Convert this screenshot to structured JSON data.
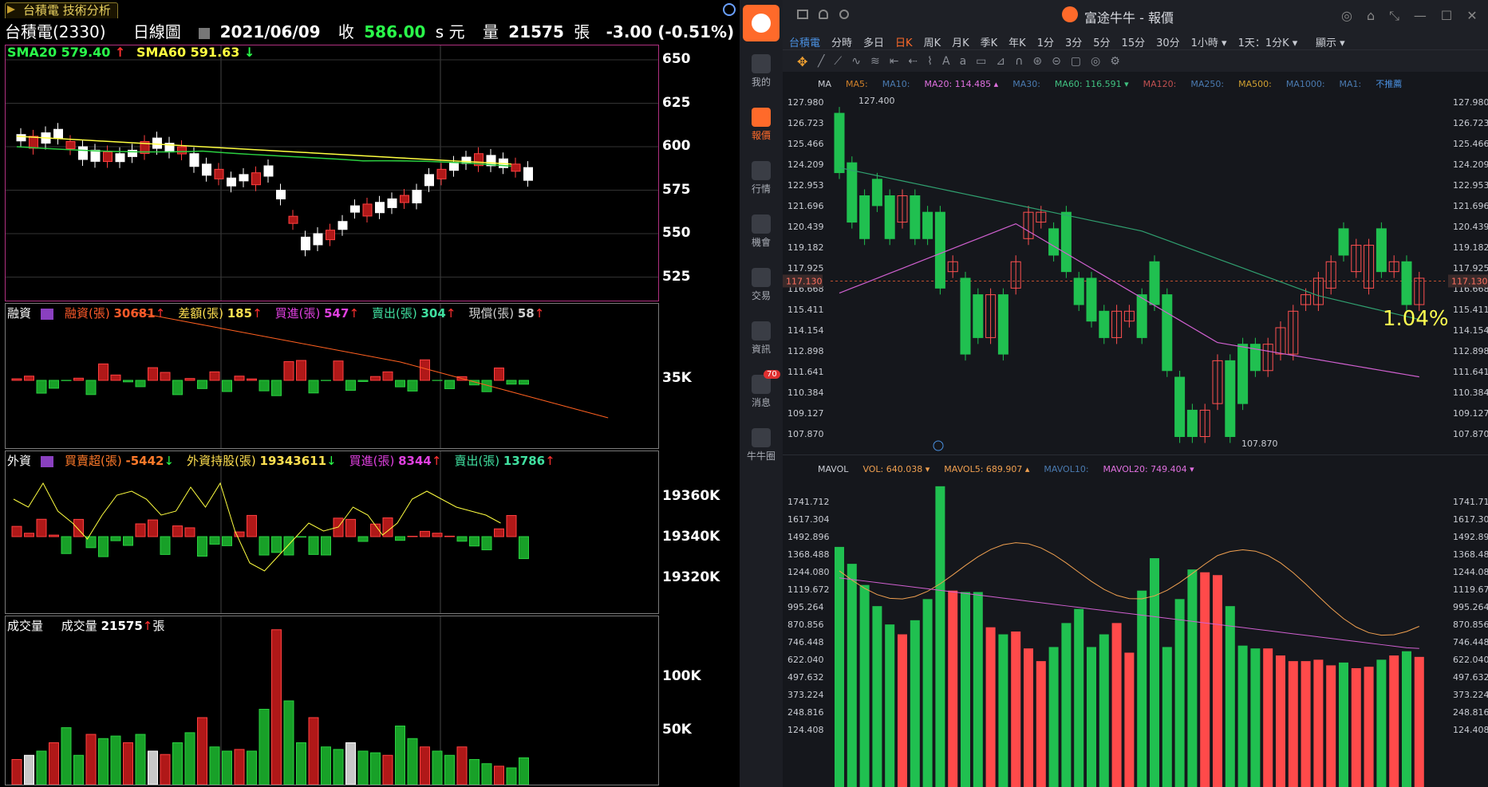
{
  "left": {
    "tab_title": "台積電 技術分析",
    "stock": "台積電(2330)",
    "period": "日線圖",
    "date": "2021/06/09",
    "close_label": "收",
    "close": "586.00",
    "unit_s": "s 元",
    "vol_label": "量",
    "vol": "21575",
    "zhang": "張",
    "change": "-3.00 (-0.51%)",
    "sma20": "SMA20 579.40",
    "sma60": "SMA60 591.63",
    "price_ticks": [
      "650",
      "625",
      "600",
      "575",
      "550",
      "525"
    ],
    "margin_panel": {
      "name": "融資",
      "items": [
        {
          "label": "融資(張)",
          "value": "30681",
          "dir": "up",
          "color": "#ff5a2a"
        },
        {
          "label": "差額(張)",
          "value": "185",
          "dir": "up",
          "color": "#ffe050"
        },
        {
          "label": "買進(張)",
          "value": "547",
          "dir": "up",
          "color": "#e040e0"
        },
        {
          "label": "賣出(張)",
          "value": "304",
          "dir": "up",
          "color": "#40e0a0"
        },
        {
          "label": "現償(張)",
          "value": "58",
          "dir": "up",
          "color": "#cfcfcf"
        }
      ],
      "tick": "35K"
    },
    "foreign_panel": {
      "name": "外資",
      "items": [
        {
          "label": "買賣超(張)",
          "value": "-5442",
          "dir": "down",
          "color": "#ff7a2a"
        },
        {
          "label": "外資持股(張)",
          "value": "19343611",
          "dir": "down",
          "color": "#ffe050"
        },
        {
          "label": "買進(張)",
          "value": "8344",
          "dir": "up",
          "color": "#e040e0"
        },
        {
          "label": "賣出(張)",
          "value": "13786",
          "dir": "up",
          "color": "#40e0a0"
        }
      ],
      "ticks": [
        "19360K",
        "19340K",
        "19320K"
      ]
    },
    "volume_panel": {
      "name": "成交量",
      "label": "成交量",
      "value": "21575",
      "unit": "張",
      "ticks": [
        "100K",
        "50K"
      ]
    }
  },
  "right": {
    "title": "富途牛牛 - 報價",
    "sidebar": [
      {
        "label": "我的",
        "icon": "person-icon"
      },
      {
        "label": "報價",
        "icon": "chart-bar-icon"
      },
      {
        "label": "行情",
        "icon": "market-icon"
      },
      {
        "label": "機會",
        "icon": "lamp-icon"
      },
      {
        "label": "交易",
        "icon": "trade-icon"
      },
      {
        "label": "資訊",
        "icon": "news-icon"
      },
      {
        "label": "消息",
        "icon": "message-icon",
        "badge": "70"
      },
      {
        "label": "牛牛圈",
        "icon": "community-icon"
      }
    ],
    "timeframes": [
      "台積電",
      "分時",
      "多日",
      "日K",
      "周K",
      "月K",
      "季K",
      "年K",
      "1分",
      "3分",
      "5分",
      "15分",
      "30分",
      "1小時 ▾",
      "1天：1分K ▾"
    ],
    "display_label": "顯示 ▾",
    "ma_bar": [
      {
        "t": "MA",
        "c": "#c9ccd3"
      },
      {
        "t": "MA5:",
        "c": "#d0802a"
      },
      {
        "t": "MA10:",
        "c": "#4a7ab0"
      },
      {
        "t": "MA20: 114.485 ▴",
        "c": "#e070e0"
      },
      {
        "t": "MA30:",
        "c": "#4a7ab0"
      },
      {
        "t": "MA60: 116.591 ▾",
        "c": "#40c080"
      },
      {
        "t": "MA120:",
        "c": "#c05050"
      },
      {
        "t": "MA250:",
        "c": "#4a7ab0"
      },
      {
        "t": "MA500:",
        "c": "#d0a030"
      },
      {
        "t": "MA1000:",
        "c": "#4a7ab0"
      },
      {
        "t": "MA1:",
        "c": "#4a7ab0"
      },
      {
        "t": "不推薦",
        "c": "#4a90e0"
      }
    ],
    "price_ticks": [
      "127.980",
      "126.723",
      "125.466",
      "124.209",
      "122.953",
      "121.696",
      "120.439",
      "119.182",
      "117.925",
      "116.668",
      "115.411",
      "114.154",
      "112.898",
      "111.641",
      "110.384",
      "109.127",
      "107.870"
    ],
    "current_price": "117.130",
    "high_label": "127.400",
    "low_label": "107.870",
    "pct_label": "1.04%",
    "vol_bar": [
      {
        "t": "MAVOL",
        "c": "#c9ccd3"
      },
      {
        "t": "VOL: 640.038 ▾",
        "c": "#f0a050"
      },
      {
        "t": "MAVOL5: 689.907 ▴",
        "c": "#f0a050"
      },
      {
        "t": "MAVOL10:",
        "c": "#4a7ab0"
      },
      {
        "t": "MAVOL20: 749.404 ▾",
        "c": "#e070e0"
      }
    ],
    "vol_ticks": [
      "1741.712",
      "1617.304",
      "1492.896",
      "1368.488",
      "1244.080",
      "1119.672",
      "995.264",
      "870.856",
      "746.448",
      "622.040",
      "497.632",
      "373.224",
      "248.816",
      "124.408"
    ]
  }
}
